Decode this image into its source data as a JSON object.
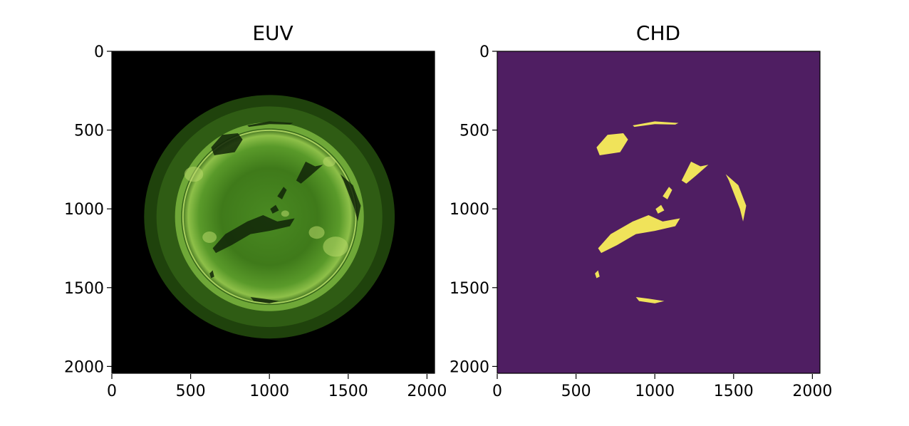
{
  "chart_data": [
    {
      "type": "heatmap",
      "title": "EUV",
      "xlabel": "",
      "ylabel": "",
      "xlim": [
        0,
        2048
      ],
      "ylim": [
        2048,
        0
      ],
      "xticks": [
        0,
        500,
        1000,
        1500,
        2000
      ],
      "yticks": [
        0,
        500,
        1000,
        1500,
        2000
      ],
      "colormap": "green solar EUV image",
      "colors": {
        "background": "#000000",
        "disk": "#3f7a1a",
        "bright": "#b8d86a",
        "dark_region": "#102508"
      },
      "sun_center": [
        1000,
        1050
      ],
      "sun_radius": 560
    },
    {
      "type": "heatmap",
      "title": "CHD",
      "xlabel": "",
      "ylabel": "",
      "xlim": [
        0,
        2048
      ],
      "ylim": [
        2048,
        0
      ],
      "xticks": [
        0,
        500,
        1000,
        1500,
        2000
      ],
      "yticks": [
        0,
        500,
        1000,
        1500,
        2000
      ],
      "colormap": "viridis (binary mask)",
      "colors": {
        "background": "#4f1e62",
        "mask": "#f0e35a"
      },
      "regions": [
        {
          "name": "north-polar-left",
          "points": [
            [
              630,
              610
            ],
            [
              700,
              530
            ],
            [
              800,
              520
            ],
            [
              830,
              560
            ],
            [
              780,
              640
            ],
            [
              650,
              660
            ]
          ]
        },
        {
          "name": "north-arc",
          "points": [
            [
              860,
              470
            ],
            [
              1000,
              445
            ],
            [
              1150,
              455
            ],
            [
              1130,
              465
            ],
            [
              1000,
              462
            ],
            [
              870,
              480
            ]
          ]
        },
        {
          "name": "central-right",
          "points": [
            [
              1170,
              820
            ],
            [
              1230,
              700
            ],
            [
              1290,
              730
            ],
            [
              1340,
              720
            ],
            [
              1260,
              790
            ],
            [
              1200,
              840
            ]
          ]
        },
        {
          "name": "right-limb",
          "points": [
            [
              1450,
              780
            ],
            [
              1530,
              850
            ],
            [
              1580,
              980
            ],
            [
              1560,
              1080
            ],
            [
              1540,
              1000
            ],
            [
              1470,
              820
            ]
          ]
        },
        {
          "name": "central-small-1",
          "points": [
            [
              1050,
              920
            ],
            [
              1090,
              860
            ],
            [
              1110,
              880
            ],
            [
              1080,
              940
            ]
          ]
        },
        {
          "name": "central-small-2",
          "points": [
            [
              1005,
              1000
            ],
            [
              1040,
              975
            ],
            [
              1060,
              1010
            ],
            [
              1020,
              1030
            ]
          ]
        },
        {
          "name": "main-band",
          "points": [
            [
              640,
              1250
            ],
            [
              720,
              1160
            ],
            [
              860,
              1080
            ],
            [
              960,
              1040
            ],
            [
              1050,
              1080
            ],
            [
              1160,
              1060
            ],
            [
              1130,
              1110
            ],
            [
              1000,
              1140
            ],
            [
              880,
              1160
            ],
            [
              760,
              1230
            ],
            [
              660,
              1280
            ]
          ]
        },
        {
          "name": "south-west-spot",
          "points": [
            [
              620,
              1410
            ],
            [
              640,
              1390
            ],
            [
              650,
              1430
            ],
            [
              630,
              1440
            ]
          ]
        },
        {
          "name": "south-arc",
          "points": [
            [
              880,
              1560
            ],
            [
              960,
              1570
            ],
            [
              1060,
              1585
            ],
            [
              1000,
              1600
            ],
            [
              900,
              1585
            ]
          ]
        }
      ]
    }
  ]
}
